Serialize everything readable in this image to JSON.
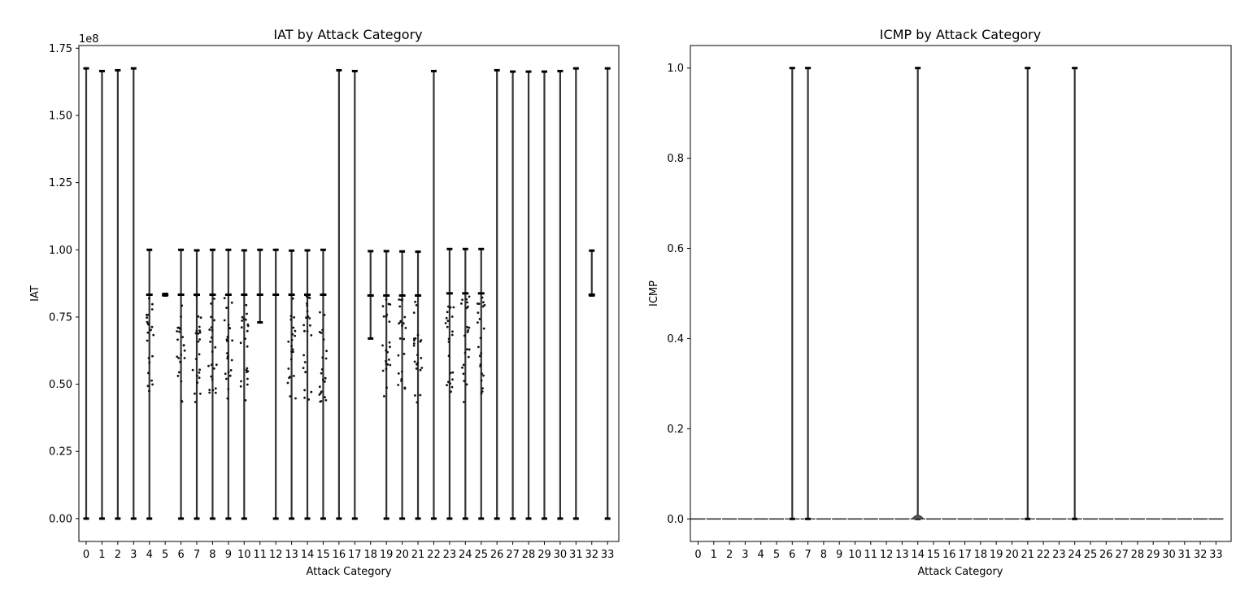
{
  "chart_data": [
    {
      "type": "violin",
      "title": "IAT by Attack Category",
      "xlabel": "Attack Category",
      "ylabel": "IAT",
      "y_offset_text": "1e8",
      "ylim": [
        -0.085,
        1.76
      ],
      "yticks": [
        0.0,
        0.25,
        0.5,
        0.75,
        1.0,
        1.25,
        1.5,
        1.75
      ],
      "ytick_labels": [
        "0.00",
        "0.25",
        "0.50",
        "0.75",
        "1.00",
        "1.25",
        "1.50",
        "1.75"
      ],
      "categories": [
        "0",
        "1",
        "2",
        "3",
        "4",
        "5",
        "6",
        "7",
        "8",
        "9",
        "10",
        "11",
        "12",
        "13",
        "14",
        "15",
        "16",
        "17",
        "18",
        "19",
        "20",
        "21",
        "22",
        "23",
        "24",
        "25",
        "26",
        "27",
        "28",
        "29",
        "30",
        "31",
        "32",
        "33"
      ],
      "ranges": [
        [
          0,
          1.675
        ],
        [
          0,
          1.665
        ],
        [
          0,
          1.668
        ],
        [
          0,
          1.675
        ],
        [
          0,
          1.0
        ],
        [
          0.83,
          0.836
        ],
        [
          0,
          1.0
        ],
        [
          0,
          0.998
        ],
        [
          0,
          1.0
        ],
        [
          0,
          1.0
        ],
        [
          0,
          0.998
        ],
        [
          0.73,
          1.0
        ],
        [
          0,
          1.0
        ],
        [
          0,
          0.997
        ],
        [
          0,
          0.998
        ],
        [
          0,
          1.0
        ],
        [
          0,
          1.668
        ],
        [
          0,
          1.665
        ],
        [
          0.67,
          0.995
        ],
        [
          0,
          0.995
        ],
        [
          0,
          0.994
        ],
        [
          0,
          0.993
        ],
        [
          0,
          1.665
        ],
        [
          0,
          1.003
        ],
        [
          0,
          1.003
        ],
        [
          0,
          1.003
        ],
        [
          0,
          1.668
        ],
        [
          0,
          1.663
        ],
        [
          0,
          1.663
        ],
        [
          0,
          1.663
        ],
        [
          0,
          1.665
        ],
        [
          0,
          1.675
        ],
        [
          0.83,
          0.997
        ],
        [
          0,
          1.675
        ]
      ],
      "medians": [
        null,
        null,
        null,
        null,
        0.833,
        0.833,
        0.833,
        0.833,
        0.833,
        0.833,
        0.833,
        0.833,
        0.833,
        0.833,
        0.833,
        0.833,
        null,
        null,
        0.83,
        0.83,
        0.83,
        0.83,
        null,
        0.838,
        0.838,
        0.838,
        null,
        null,
        null,
        null,
        null,
        null,
        0.833,
        null
      ],
      "scatter_categories": [
        4,
        6,
        7,
        8,
        9,
        10,
        13,
        14,
        15,
        19,
        20,
        21,
        23,
        24,
        25
      ],
      "scatter_range": [
        0.43,
        0.83
      ]
    },
    {
      "type": "violin",
      "title": "ICMP by Attack Category",
      "xlabel": "Attack Category",
      "ylabel": "ICMP",
      "ylim": [
        -0.05,
        1.05
      ],
      "yticks": [
        0.0,
        0.2,
        0.4,
        0.6,
        0.8,
        1.0
      ],
      "ytick_labels": [
        "0.0",
        "0.2",
        "0.4",
        "0.6",
        "0.8",
        "1.0"
      ],
      "categories": [
        "0",
        "1",
        "2",
        "3",
        "4",
        "5",
        "6",
        "7",
        "8",
        "9",
        "10",
        "11",
        "12",
        "13",
        "14",
        "15",
        "16",
        "17",
        "18",
        "19",
        "20",
        "21",
        "22",
        "23",
        "24",
        "25",
        "26",
        "27",
        "28",
        "29",
        "30",
        "31",
        "32",
        "33"
      ],
      "ranges": [
        [
          0,
          0
        ],
        [
          0,
          0
        ],
        [
          0,
          0
        ],
        [
          0,
          0
        ],
        [
          0,
          0
        ],
        [
          0,
          0
        ],
        [
          0,
          1
        ],
        [
          0,
          1
        ],
        [
          0,
          0
        ],
        [
          0,
          0
        ],
        [
          0,
          0
        ],
        [
          0,
          0
        ],
        [
          0,
          0
        ],
        [
          0,
          0
        ],
        [
          0,
          1
        ],
        [
          0,
          0
        ],
        [
          0,
          0
        ],
        [
          0,
          0
        ],
        [
          0,
          0
        ],
        [
          0,
          0
        ],
        [
          0,
          0
        ],
        [
          0,
          1
        ],
        [
          0,
          0
        ],
        [
          0,
          0
        ],
        [
          0,
          1
        ],
        [
          0,
          0
        ],
        [
          0,
          0
        ],
        [
          0,
          0
        ],
        [
          0,
          0
        ],
        [
          0,
          0
        ],
        [
          0,
          0
        ],
        [
          0,
          0
        ],
        [
          0,
          0
        ],
        [
          0,
          0
        ]
      ]
    }
  ]
}
